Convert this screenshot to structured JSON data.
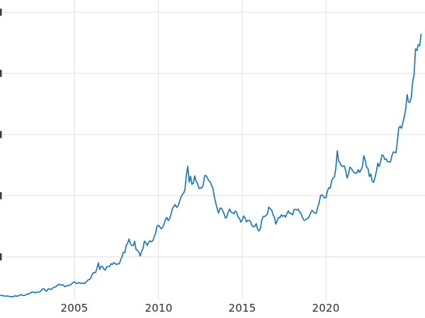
{
  "chart_data": {
    "type": "line",
    "title": "",
    "xlabel": "",
    "ylabel": "",
    "legend": "none",
    "grid": true,
    "background_color": "#ffffff",
    "grid_color": "#e0e0e0",
    "line_color": "#1f77b4",
    "tick_label_color": "#2b2b2b",
    "xticks": [
      2005,
      2010,
      2015,
      2020
    ],
    "xtick_labels": [
      "2005",
      "2010",
      "2015",
      "2020"
    ],
    "ytick_labels_visible": false,
    "xlim": [
      2000.55,
      2025.9
    ],
    "ylim": [
      0,
      3900
    ],
    "ygrid_values": [
      750,
      1500,
      2250,
      3000,
      3750
    ],
    "series": [
      {
        "name": "price",
        "color": "#1f77b4",
        "x_start": 2000.5833,
        "x_step_years": 0.0833333,
        "values": [
          281,
          274,
          273,
          270,
          266,
          272,
          265,
          262,
          263,
          260,
          272,
          270,
          268,
          272,
          284,
          283,
          276,
          276,
          282,
          295,
          294,
          303,
          314,
          321,
          313,
          310,
          319,
          317,
          319,
          333,
          357,
          359,
          340,
          328,
          355,
          356,
          351,
          360,
          379,
          379,
          389,
          407,
          414,
          405,
          406,
          403,
          384,
          392,
          398,
          400,
          405,
          420,
          439,
          442,
          424,
          423,
          434,
          429,
          422,
          431,
          424,
          438,
          456,
          470,
          477,
          510,
          550,
          555,
          557,
          611,
          676,
          596,
          634,
          632,
          599,
          586,
          628,
          630,
          631,
          665,
          655,
          680,
          667,
          656,
          665,
          665,
          713,
          755,
          806,
          803,
          890,
          922,
          968,
          910,
          889,
          889,
          940,
          839,
          830,
          807,
          761,
          816,
          858,
          943,
          924,
          890,
          929,
          946,
          934,
          949,
          997,
          1043,
          1127,
          1135,
          1118,
          1095,
          1113,
          1149,
          1205,
          1233,
          1193,
          1216,
          1271,
          1342,
          1370,
          1391,
          1356,
          1373,
          1424,
          1474,
          1512,
          1529,
          1573,
          1756,
          1860,
          1666,
          1739,
          1640,
          1654,
          1743,
          1674,
          1650,
          1589,
          1597,
          1593,
          1630,
          1745,
          1747,
          1721,
          1684,
          1672,
          1628,
          1593,
          1487,
          1414,
          1343,
          1286,
          1347,
          1348,
          1316,
          1276,
          1225,
          1244,
          1301,
          1336,
          1299,
          1288,
          1279,
          1311,
          1296,
          1238,
          1222,
          1176,
          1201,
          1251,
          1227,
          1178,
          1198,
          1199,
          1181,
          1130,
          1118,
          1125,
          1159,
          1086,
          1068,
          1098,
          1200,
          1246,
          1242,
          1261,
          1276,
          1360,
          1340,
          1327,
          1266,
          1238,
          1152,
          1192,
          1234,
          1231,
          1266,
          1246,
          1260,
          1237,
          1283,
          1314,
          1280,
          1282,
          1264,
          1331,
          1330,
          1325,
          1335,
          1303,
          1282,
          1238,
          1202,
          1198,
          1215,
          1221,
          1250,
          1292,
          1320,
          1301,
          1286,
          1284,
          1359,
          1413,
          1500,
          1511,
          1495,
          1471,
          1479,
          1561,
          1597,
          1592,
          1683,
          1716,
          1732,
          1843,
          2050,
          1922,
          1900,
          1866,
          1858,
          1867,
          1808,
          1718,
          1762,
          1850,
          1835,
          1807,
          1784,
          1777,
          1777,
          1820,
          1787,
          1817,
          1856,
          1990,
          1934,
          1848,
          1836,
          1733,
          1765,
          1681,
          1664,
          1726,
          1797,
          1898,
          1858,
          1913,
          2000,
          1992,
          1943,
          1951,
          1918,
          1916,
          1913,
          1984,
          2033,
          2034,
          2025,
          2158,
          2330,
          2351,
          2326,
          2398,
          2470,
          2568,
          2740,
          2651,
          2643,
          2708,
          2897,
          2983,
          3300,
          3280,
          3353,
          3338,
          3480
        ]
      }
    ]
  }
}
